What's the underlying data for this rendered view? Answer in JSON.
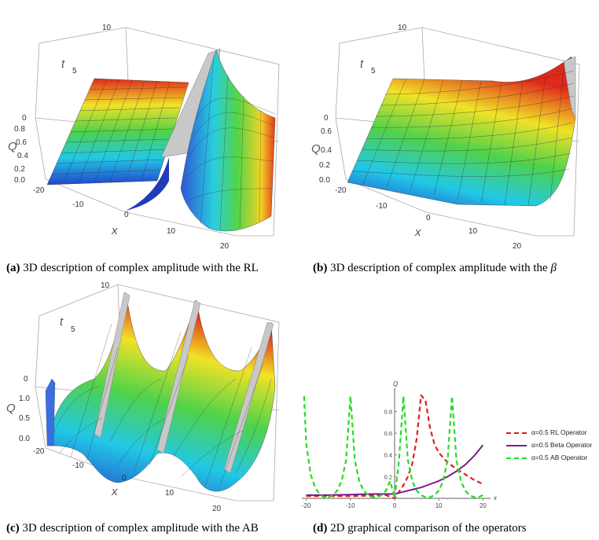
{
  "figures": {
    "a": {
      "label": "(a)",
      "text": " 3D description of complex amplitude with the RL",
      "t_label": "t",
      "x_label": "x",
      "q_label": "Q",
      "t_ticks": [
        "10",
        "5",
        "0"
      ],
      "q_ticks": [
        "0.8",
        "0.6",
        "0.4",
        "0.2",
        "0.0"
      ],
      "x_ticks": [
        "-20",
        "-10",
        "0",
        "10",
        "20"
      ]
    },
    "b": {
      "label": "(b)",
      "text": " 3D description of complex amplitude with the ",
      "symbol": "β",
      "t_label": "t",
      "x_label": "x",
      "q_label": "Q",
      "t_ticks": [
        "10",
        "5",
        "0"
      ],
      "q_ticks": [
        "0.6",
        "0.4",
        "0.2",
        "0.0"
      ],
      "x_ticks": [
        "-20",
        "-10",
        "0",
        "10",
        "20"
      ]
    },
    "c": {
      "label": "(c)",
      "text": " 3D description of complex amplitude with the AB",
      "t_label": "t",
      "x_label": "x",
      "q_label": "Q",
      "t_ticks": [
        "10",
        "5",
        "0"
      ],
      "q_ticks": [
        "1.0",
        "0.5",
        "0.0"
      ],
      "x_ticks": [
        "-20",
        "-10",
        "0",
        "10",
        "20"
      ]
    },
    "d": {
      "label": "(d)",
      "text": " 2D graphical comparison of the operators"
    }
  },
  "chart_data": {
    "type": "line",
    "title": "",
    "xlabel": "x",
    "ylabel": "Q",
    "xlim": [
      -21,
      21
    ],
    "ylim": [
      0,
      0.97
    ],
    "x_ticks": [
      "-20",
      "-10",
      "0",
      "10",
      "20"
    ],
    "y_ticks": [
      "0.2",
      "0.4",
      "0.6",
      "0.8"
    ],
    "legend_position": "right",
    "series": [
      {
        "name": "α=0.5 RL Operator",
        "color": "#e0201c",
        "style": "dashed",
        "x": [
          -20,
          -15,
          -10,
          -5,
          -2,
          0,
          1,
          2,
          3,
          4,
          5,
          6,
          7,
          8,
          9,
          10,
          12,
          14,
          16,
          18,
          20
        ],
        "y": [
          0.02,
          0.02,
          0.02,
          0.025,
          0.03,
          0.0,
          0.06,
          0.12,
          0.2,
          0.32,
          0.55,
          0.95,
          0.9,
          0.65,
          0.5,
          0.42,
          0.33,
          0.27,
          0.22,
          0.17,
          0.13
        ]
      },
      {
        "name": "α=0.5 Beta Operator",
        "color": "#7b1a8c",
        "style": "solid",
        "x": [
          -20,
          -15,
          -10,
          -5,
          0,
          2,
          4,
          6,
          8,
          10,
          12,
          14,
          16,
          18,
          20
        ],
        "y": [
          0.03,
          0.03,
          0.035,
          0.04,
          0.04,
          0.06,
          0.08,
          0.1,
          0.13,
          0.16,
          0.2,
          0.25,
          0.31,
          0.39,
          0.49
        ]
      },
      {
        "name": "α=0.5 AB Operator",
        "color": "#22dd22",
        "style": "dashed",
        "x": [
          -20.5,
          -20,
          -19,
          -18,
          -17,
          -16,
          -15,
          -14,
          -13,
          -12,
          -11,
          -10,
          -9,
          -8,
          -7,
          -6,
          -5,
          -4,
          -3,
          -2,
          -1,
          0,
          1,
          2,
          3,
          4,
          5,
          6,
          7,
          8,
          9,
          10,
          11,
          12,
          13,
          14,
          15,
          16,
          17,
          18,
          19,
          20
        ],
        "y": [
          0.94,
          0.5,
          0.22,
          0.1,
          0.04,
          0.01,
          0.01,
          0.03,
          0.07,
          0.16,
          0.35,
          0.94,
          0.35,
          0.16,
          0.07,
          0.03,
          0.01,
          0.01,
          0.03,
          0.07,
          0.16,
          0.0,
          0.35,
          0.94,
          0.35,
          0.16,
          0.07,
          0.03,
          0.01,
          0.01,
          0.03,
          0.07,
          0.16,
          0.35,
          0.94,
          0.35,
          0.16,
          0.07,
          0.03,
          0.01,
          0.01,
          0.03
        ]
      }
    ]
  }
}
